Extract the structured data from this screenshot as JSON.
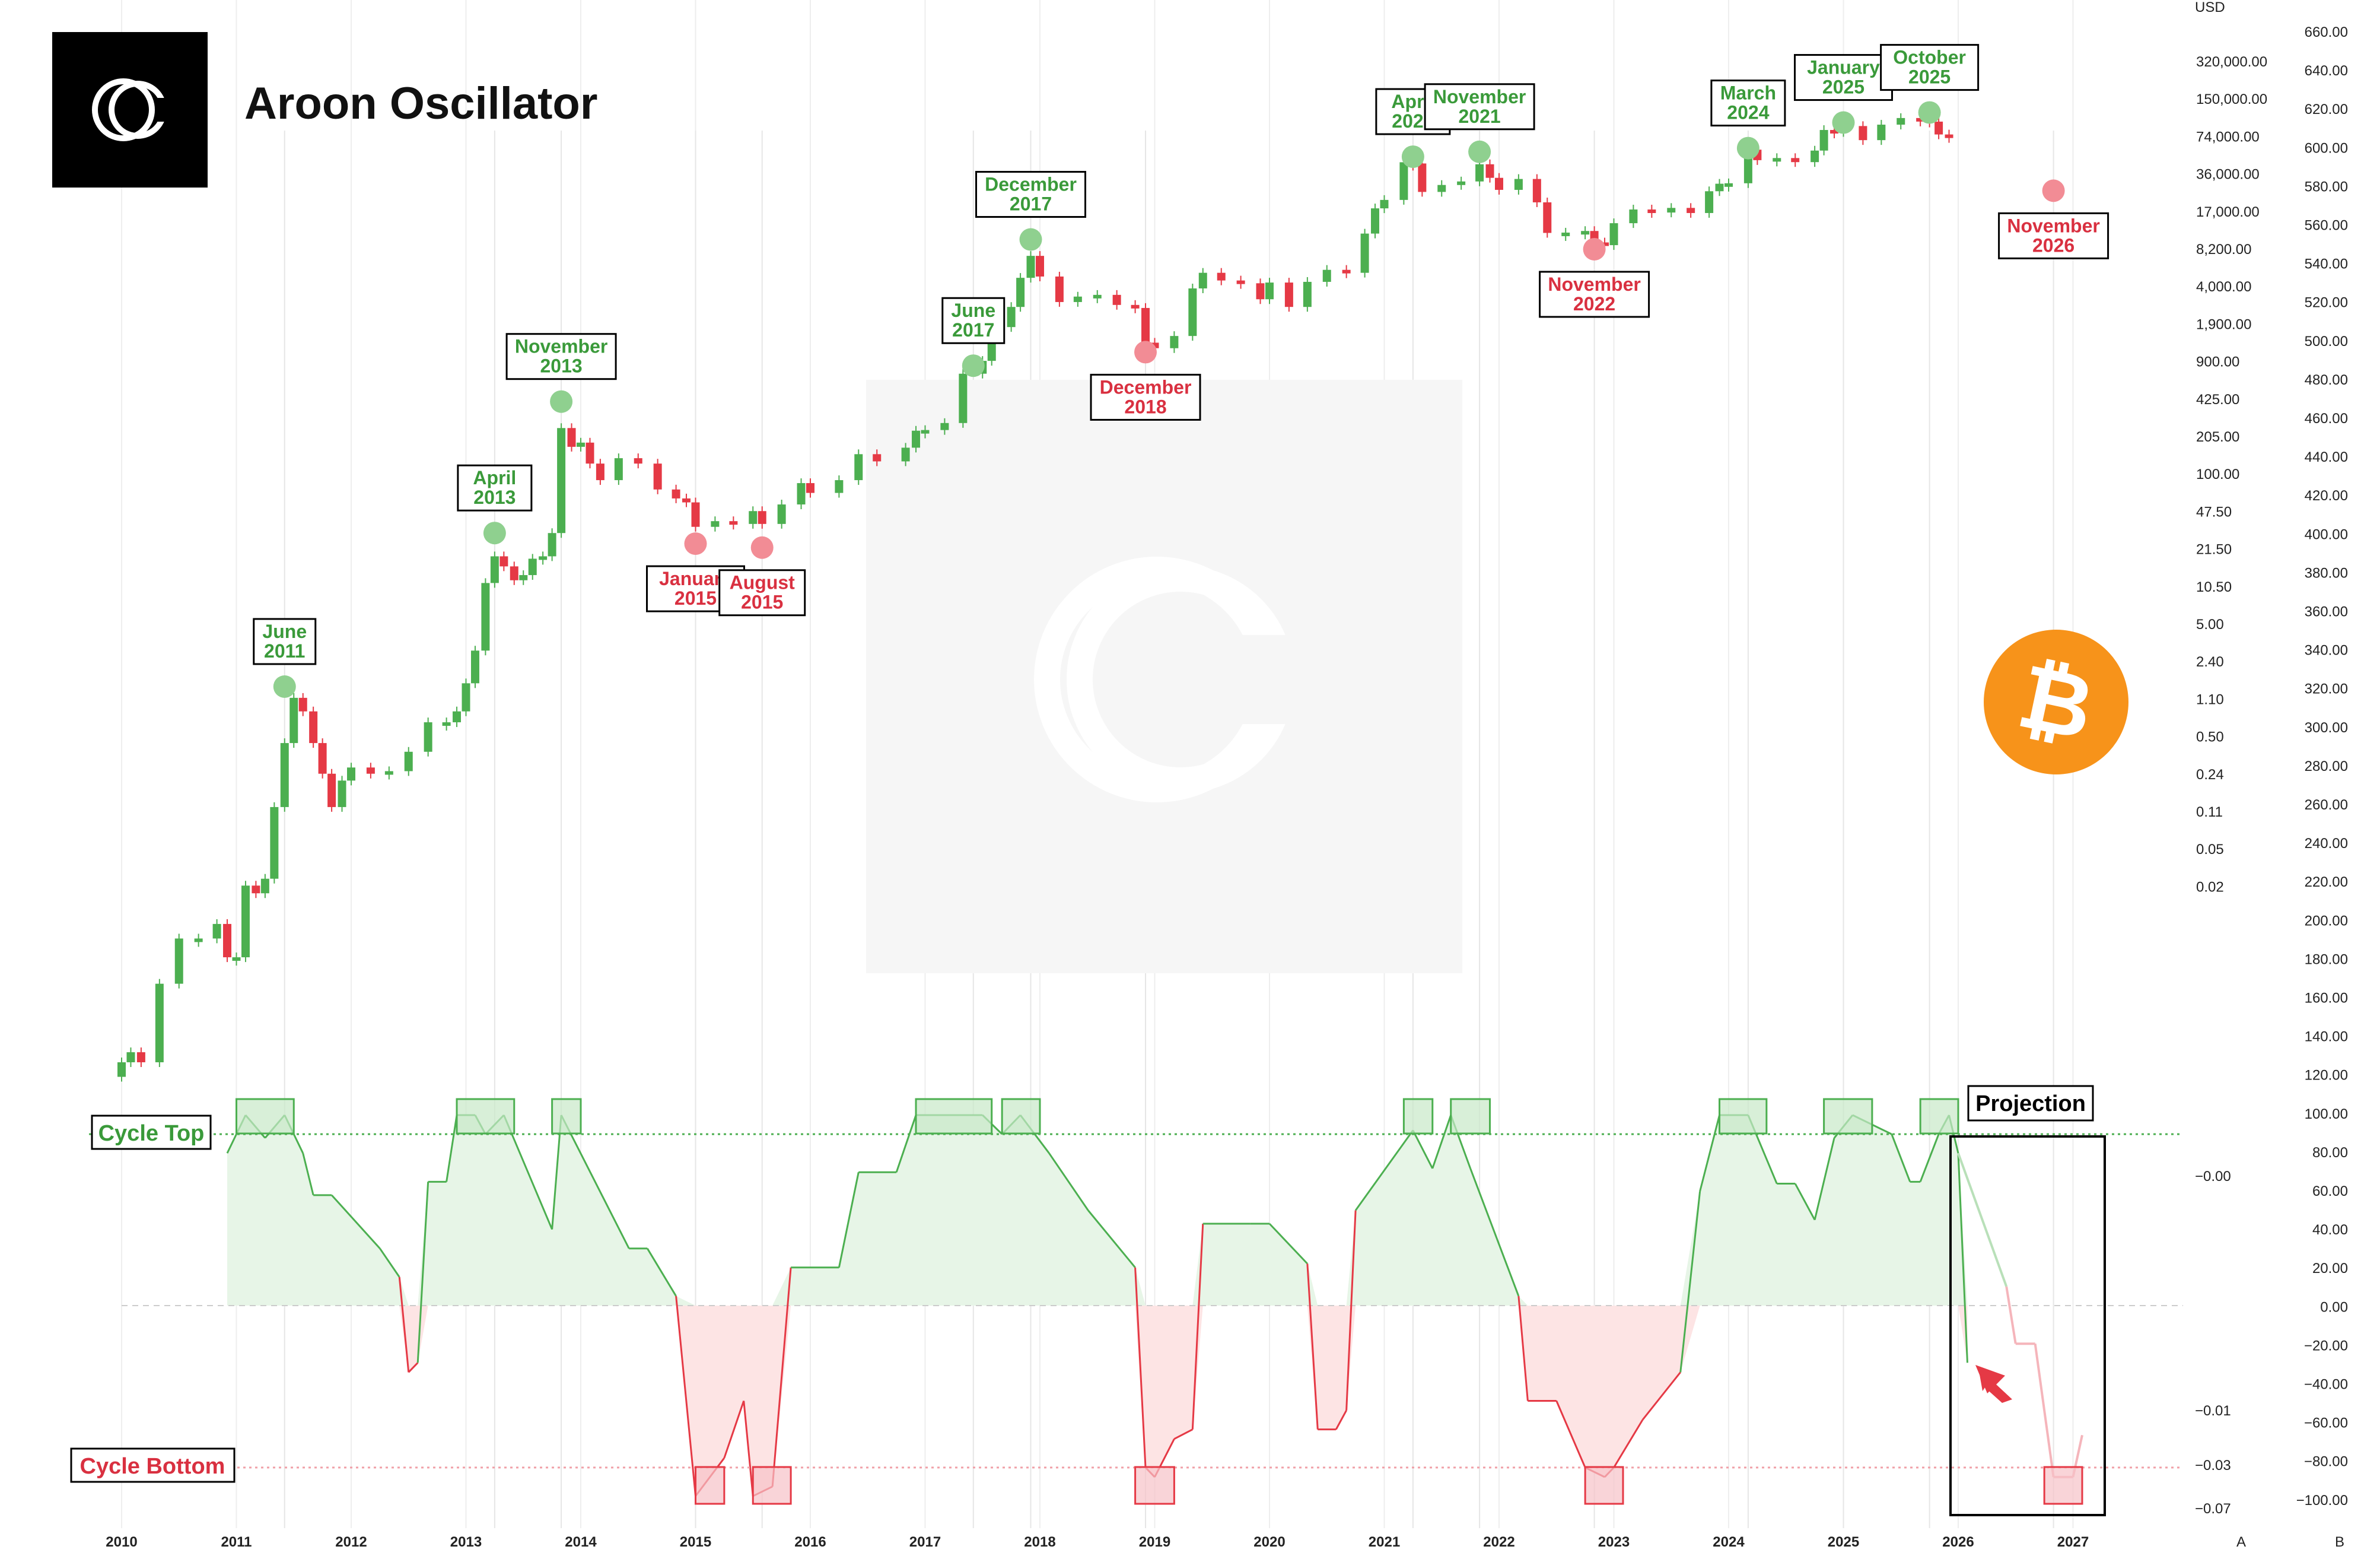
{
  "title": "Aroon Oscillator",
  "colors": {
    "up": "#4caf50",
    "down": "#e53945",
    "top_fill": "#e7f5e7",
    "bottom_fill": "#fde4e4",
    "top_marker": "#8fd08f",
    "bottom_marker": "#f28c95",
    "bitcoin": "#f7931a",
    "logo_bg": "#000000"
  },
  "icons": [
    "cc-logo-icon",
    "bitcoin-icon",
    "watermark-logo-icon",
    "arrow-icon"
  ],
  "price_axis": {
    "unit": "USD",
    "labels": [
      "320,000.00",
      "150,000.00",
      "74,000.00",
      "36,000.00",
      "17,000.00",
      "8,200.00",
      "4,000.00",
      "1,900.00",
      "900.00",
      "425.00",
      "205.00",
      "100.00",
      "47.50",
      "21.50",
      "10.50",
      "5.00",
      "2.40",
      "1.10",
      "0.50",
      "0.24",
      "0.11",
      "0.05",
      "0.02"
    ]
  },
  "right_axis": {
    "labels": [
      "660.00",
      "640.00",
      "620.00",
      "600.00",
      "580.00",
      "560.00",
      "540.00",
      "520.00",
      "500.00",
      "480.00",
      "460.00",
      "440.00",
      "420.00",
      "400.00",
      "380.00",
      "360.00",
      "340.00",
      "320.00",
      "300.00",
      "280.00",
      "260.00",
      "240.00",
      "220.00",
      "200.00",
      "180.00",
      "160.00",
      "140.00",
      "120.00",
      "100.00",
      "80.00",
      "60.00",
      "40.00",
      "20.00",
      "0.00",
      "−20.00",
      "−40.00",
      "−60.00",
      "−80.00",
      "−100.00"
    ],
    "corner_a": "A",
    "corner_b": "B"
  },
  "oscillator_axis": {
    "labels": [
      "−0.00",
      "−0.01",
      "−0.03",
      "−0.07"
    ]
  },
  "x_axis": {
    "years": [
      "2010",
      "2011",
      "2012",
      "2013",
      "2014",
      "2015",
      "2016",
      "2017",
      "2018",
      "2019",
      "2020",
      "2021",
      "2022",
      "2023",
      "2024",
      "2025",
      "2026",
      "2027"
    ]
  },
  "levels": {
    "top_label": "Cycle Top",
    "bottom_label": "Cycle Bottom",
    "projection_label": "Projection"
  },
  "chart_data": {
    "type": "line",
    "title": "Aroon Oscillator",
    "price_series_unit": "USD",
    "price_scale": "log",
    "aroon_range": [
      -100,
      100
    ],
    "cycle_top_level": 90,
    "cycle_bottom_level": -85,
    "price_monthly": [
      {
        "t": 2010.0,
        "v": 0.06
      },
      {
        "t": 2010.08,
        "v": 0.07
      },
      {
        "t": 2010.17,
        "v": 0.06
      },
      {
        "t": 2010.33,
        "v": 0.2
      },
      {
        "t": 2010.5,
        "v": 0.4
      },
      {
        "t": 2010.67,
        "v": 0.4
      },
      {
        "t": 2010.83,
        "v": 0.5
      },
      {
        "t": 2010.92,
        "v": 0.3
      },
      {
        "t": 2011.0,
        "v": 0.3
      },
      {
        "t": 2011.08,
        "v": 0.9
      },
      {
        "t": 2011.17,
        "v": 0.8
      },
      {
        "t": 2011.25,
        "v": 1.0
      },
      {
        "t": 2011.33,
        "v": 3.0
      },
      {
        "t": 2011.42,
        "v": 8.0
      },
      {
        "t": 2011.5,
        "v": 16.0
      },
      {
        "t": 2011.58,
        "v": 13.0
      },
      {
        "t": 2011.67,
        "v": 8.0
      },
      {
        "t": 2011.75,
        "v": 5.0
      },
      {
        "t": 2011.83,
        "v": 3.0
      },
      {
        "t": 2011.92,
        "v": 4.5
      },
      {
        "t": 2012.0,
        "v": 5.5
      },
      {
        "t": 2012.17,
        "v": 5.0
      },
      {
        "t": 2012.33,
        "v": 5.2
      },
      {
        "t": 2012.5,
        "v": 7.0
      },
      {
        "t": 2012.67,
        "v": 11.0
      },
      {
        "t": 2012.83,
        "v": 11.0
      },
      {
        "t": 2012.92,
        "v": 13.0
      },
      {
        "t": 2013.0,
        "v": 20.0
      },
      {
        "t": 2013.08,
        "v": 33.0
      },
      {
        "t": 2013.17,
        "v": 93.0
      },
      {
        "t": 2013.25,
        "v": 140.0
      },
      {
        "t": 2013.33,
        "v": 120.0
      },
      {
        "t": 2013.42,
        "v": 97.0
      },
      {
        "t": 2013.5,
        "v": 105.0
      },
      {
        "t": 2013.58,
        "v": 135.0
      },
      {
        "t": 2013.67,
        "v": 140.0
      },
      {
        "t": 2013.75,
        "v": 200.0
      },
      {
        "t": 2013.83,
        "v": 1000.0
      },
      {
        "t": 2013.92,
        "v": 750.0
      },
      {
        "t": 2014.0,
        "v": 800.0
      },
      {
        "t": 2014.08,
        "v": 580.0
      },
      {
        "t": 2014.17,
        "v": 450.0
      },
      {
        "t": 2014.33,
        "v": 630.0
      },
      {
        "t": 2014.5,
        "v": 580.0
      },
      {
        "t": 2014.67,
        "v": 390.0
      },
      {
        "t": 2014.83,
        "v": 340.0
      },
      {
        "t": 2014.92,
        "v": 320.0
      },
      {
        "t": 2015.0,
        "v": 220.0
      },
      {
        "t": 2015.17,
        "v": 240.0
      },
      {
        "t": 2015.33,
        "v": 230.0
      },
      {
        "t": 2015.5,
        "v": 280.0
      },
      {
        "t": 2015.58,
        "v": 230.0
      },
      {
        "t": 2015.75,
        "v": 310.0
      },
      {
        "t": 2015.92,
        "v": 430.0
      },
      {
        "t": 2016.0,
        "v": 370.0
      },
      {
        "t": 2016.25,
        "v": 450.0
      },
      {
        "t": 2016.42,
        "v": 670.0
      },
      {
        "t": 2016.58,
        "v": 600.0
      },
      {
        "t": 2016.83,
        "v": 740.0
      },
      {
        "t": 2016.92,
        "v": 960.0
      },
      {
        "t": 2017.0,
        "v": 970.0
      },
      {
        "t": 2017.17,
        "v": 1080.0
      },
      {
        "t": 2017.33,
        "v": 2300.0
      },
      {
        "t": 2017.5,
        "v": 2800.0
      },
      {
        "t": 2017.58,
        "v": 4700.0
      },
      {
        "t": 2017.75,
        "v": 6400.0
      },
      {
        "t": 2017.83,
        "v": 10000.0
      },
      {
        "t": 2017.92,
        "v": 14000.0
      },
      {
        "t": 2018.0,
        "v": 10200.0
      },
      {
        "t": 2018.17,
        "v": 6900.0
      },
      {
        "t": 2018.33,
        "v": 7500.0
      },
      {
        "t": 2018.5,
        "v": 7700.0
      },
      {
        "t": 2018.67,
        "v": 6600.0
      },
      {
        "t": 2018.83,
        "v": 6300.0
      },
      {
        "t": 2018.92,
        "v": 3700.0
      },
      {
        "t": 2019.0,
        "v": 3400.0
      },
      {
        "t": 2019.17,
        "v": 4100.0
      },
      {
        "t": 2019.33,
        "v": 8500.0
      },
      {
        "t": 2019.42,
        "v": 10800.0
      },
      {
        "t": 2019.58,
        "v": 9600.0
      },
      {
        "t": 2019.75,
        "v": 9200.0
      },
      {
        "t": 2019.92,
        "v": 7200.0
      },
      {
        "t": 2020.0,
        "v": 9300.0
      },
      {
        "t": 2020.17,
        "v": 6400.0
      },
      {
        "t": 2020.33,
        "v": 9400.0
      },
      {
        "t": 2020.5,
        "v": 11300.0
      },
      {
        "t": 2020.67,
        "v": 10800.0
      },
      {
        "t": 2020.83,
        "v": 19700.0
      },
      {
        "t": 2020.92,
        "v": 29000.0
      },
      {
        "t": 2021.0,
        "v": 33000.0
      },
      {
        "t": 2021.17,
        "v": 58800.0
      },
      {
        "t": 2021.25,
        "v": 57700.0
      },
      {
        "t": 2021.33,
        "v": 37300.0
      },
      {
        "t": 2021.5,
        "v": 41500.0
      },
      {
        "t": 2021.67,
        "v": 43800.0
      },
      {
        "t": 2021.83,
        "v": 57000.0
      },
      {
        "t": 2021.92,
        "v": 46300.0
      },
      {
        "t": 2022.0,
        "v": 38500.0
      },
      {
        "t": 2022.17,
        "v": 45500.0
      },
      {
        "t": 2022.33,
        "v": 31800.0
      },
      {
        "t": 2022.42,
        "v": 19900.0
      },
      {
        "t": 2022.58,
        "v": 20000.0
      },
      {
        "t": 2022.75,
        "v": 20500.0
      },
      {
        "t": 2022.83,
        "v": 17200.0
      },
      {
        "t": 2022.92,
        "v": 16500.0
      },
      {
        "t": 2023.0,
        "v": 23100.0
      },
      {
        "t": 2023.17,
        "v": 28500.0
      },
      {
        "t": 2023.33,
        "v": 27200.0
      },
      {
        "t": 2023.5,
        "v": 29200.0
      },
      {
        "t": 2023.67,
        "v": 27000.0
      },
      {
        "t": 2023.83,
        "v": 37700.0
      },
      {
        "t": 2023.92,
        "v": 42300.0
      },
      {
        "t": 2024.0,
        "v": 42600.0
      },
      {
        "t": 2024.17,
        "v": 71300.0
      },
      {
        "t": 2024.25,
        "v": 60700.0
      },
      {
        "t": 2024.42,
        "v": 62700.0
      },
      {
        "t": 2024.58,
        "v": 58900.0
      },
      {
        "t": 2024.75,
        "v": 70300.0
      },
      {
        "t": 2024.83,
        "v": 96400.0
      },
      {
        "t": 2024.92,
        "v": 93400.0
      },
      {
        "t": 2025.0,
        "v": 102400.0
      },
      {
        "t": 2025.17,
        "v": 82500.0
      },
      {
        "t": 2025.33,
        "v": 104600.0
      },
      {
        "t": 2025.5,
        "v": 115800.0
      },
      {
        "t": 2025.67,
        "v": 114000.0
      },
      {
        "t": 2025.75,
        "v": 109600.0
      },
      {
        "t": 2025.83,
        "v": 90000.0
      },
      {
        "t": 2025.92,
        "v": 87000.0
      }
    ],
    "aroon": [
      {
        "t": 2010.92,
        "v": 80
      },
      {
        "t": 2011.0,
        "v": 90
      },
      {
        "t": 2011.08,
        "v": 100
      },
      {
        "t": 2011.25,
        "v": 88
      },
      {
        "t": 2011.42,
        "v": 100
      },
      {
        "t": 2011.58,
        "v": 80
      },
      {
        "t": 2011.67,
        "v": 58
      },
      {
        "t": 2011.83,
        "v": 58
      },
      {
        "t": 2012.25,
        "v": 30
      },
      {
        "t": 2012.42,
        "v": 15
      },
      {
        "t": 2012.5,
        "v": -35
      },
      {
        "t": 2012.58,
        "v": -30
      },
      {
        "t": 2012.67,
        "v": 65
      },
      {
        "t": 2012.83,
        "v": 65
      },
      {
        "t": 2012.92,
        "v": 100
      },
      {
        "t": 2013.08,
        "v": 100
      },
      {
        "t": 2013.17,
        "v": 90
      },
      {
        "t": 2013.33,
        "v": 100
      },
      {
        "t": 2013.75,
        "v": 40
      },
      {
        "t": 2013.83,
        "v": 100
      },
      {
        "t": 2014.42,
        "v": 30
      },
      {
        "t": 2014.58,
        "v": 30
      },
      {
        "t": 2014.83,
        "v": 5
      },
      {
        "t": 2015.0,
        "v": -100
      },
      {
        "t": 2015.25,
        "v": -80
      },
      {
        "t": 2015.42,
        "v": -50
      },
      {
        "t": 2015.5,
        "v": -100
      },
      {
        "t": 2015.67,
        "v": -95
      },
      {
        "t": 2015.83,
        "v": 20
      },
      {
        "t": 2016.25,
        "v": 20
      },
      {
        "t": 2016.42,
        "v": 70
      },
      {
        "t": 2016.75,
        "v": 70
      },
      {
        "t": 2016.92,
        "v": 100
      },
      {
        "t": 2017.5,
        "v": 100
      },
      {
        "t": 2017.67,
        "v": 90
      },
      {
        "t": 2017.83,
        "v": 100
      },
      {
        "t": 2018.08,
        "v": 80
      },
      {
        "t": 2018.42,
        "v": 50
      },
      {
        "t": 2018.83,
        "v": 20
      },
      {
        "t": 2018.92,
        "v": -85
      },
      {
        "t": 2019.0,
        "v": -90
      },
      {
        "t": 2019.17,
        "v": -70
      },
      {
        "t": 2019.33,
        "v": -65
      },
      {
        "t": 2019.42,
        "v": 43
      },
      {
        "t": 2019.83,
        "v": 43
      },
      {
        "t": 2020.0,
        "v": 43
      },
      {
        "t": 2020.33,
        "v": 22
      },
      {
        "t": 2020.42,
        "v": -65
      },
      {
        "t": 2020.58,
        "v": -65
      },
      {
        "t": 2020.67,
        "v": -55
      },
      {
        "t": 2020.75,
        "v": 50
      },
      {
        "t": 2021.25,
        "v": 92
      },
      {
        "t": 2021.42,
        "v": 72
      },
      {
        "t": 2021.58,
        "v": 100
      },
      {
        "t": 2021.75,
        "v": 72
      },
      {
        "t": 2022.17,
        "v": 5
      },
      {
        "t": 2022.25,
        "v": -50
      },
      {
        "t": 2022.5,
        "v": -50
      },
      {
        "t": 2022.75,
        "v": -85
      },
      {
        "t": 2022.92,
        "v": -90
      },
      {
        "t": 2023.0,
        "v": -85
      },
      {
        "t": 2023.25,
        "v": -60
      },
      {
        "t": 2023.58,
        "v": -35
      },
      {
        "t": 2023.75,
        "v": 60
      },
      {
        "t": 2023.92,
        "v": 100
      },
      {
        "t": 2024.17,
        "v": 100
      },
      {
        "t": 2024.42,
        "v": 64
      },
      {
        "t": 2024.58,
        "v": 64
      },
      {
        "t": 2024.75,
        "v": 45
      },
      {
        "t": 2024.92,
        "v": 88
      },
      {
        "t": 2025.08,
        "v": 100
      },
      {
        "t": 2025.42,
        "v": 90
      },
      {
        "t": 2025.58,
        "v": 65
      },
      {
        "t": 2025.67,
        "v": 65
      },
      {
        "t": 2025.83,
        "v": 90
      },
      {
        "t": 2025.92,
        "v": 100
      },
      {
        "t": 2026.0,
        "v": 80
      },
      {
        "t": 2026.08,
        "v": -30
      }
    ],
    "aroon_projection": [
      {
        "t": 2026.0,
        "v": 80
      },
      {
        "t": 2026.42,
        "v": 10
      },
      {
        "t": 2026.5,
        "v": -20
      },
      {
        "t": 2026.67,
        "v": -20
      },
      {
        "t": 2026.83,
        "v": -90
      },
      {
        "t": 2027.0,
        "v": -90
      },
      {
        "t": 2027.08,
        "v": -68
      }
    ],
    "annotations": {
      "tops": [
        {
          "text": "June 2011",
          "t": 2011.42,
          "v": 19.0
        },
        {
          "text": "April 2013",
          "t": 2013.25,
          "v": 200.0
        },
        {
          "text": "November 2013",
          "t": 2013.83,
          "v": 1500.0
        },
        {
          "text": "June 2017",
          "t": 2017.42,
          "v": 2600.0
        },
        {
          "text": "December 2017",
          "t": 2017.92,
          "v": 18000.0
        },
        {
          "text": "April 2021",
          "t": 2021.25,
          "v": 64000.0
        },
        {
          "text": "November 2021",
          "t": 2021.83,
          "v": 69000.0
        },
        {
          "text": "March 2024",
          "t": 2024.17,
          "v": 73000.0
        },
        {
          "text": "January 2025",
          "t": 2025.0,
          "v": 108000.0
        },
        {
          "text": "October 2025",
          "t": 2025.75,
          "v": 126000.0
        }
      ],
      "bottoms": [
        {
          "text": "January 2015",
          "t": 2015.0,
          "v": 170.0
        },
        {
          "text": "August 2015",
          "t": 2015.58,
          "v": 160.0
        },
        {
          "text": "December 2018",
          "t": 2018.92,
          "v": 3200.0
        },
        {
          "text": "November 2022",
          "t": 2022.83,
          "v": 15500.0
        },
        {
          "text": "November 2026",
          "t": 2026.83,
          "v": 38000.0
        }
      ]
    },
    "top_zones": [
      [
        2011.0,
        2011.5
      ],
      [
        2012.92,
        2013.42
      ],
      [
        2013.75,
        2014.0
      ],
      [
        2016.92,
        2017.58
      ],
      [
        2017.67,
        2018.0
      ],
      [
        2021.17,
        2021.42
      ],
      [
        2021.58,
        2021.92
      ],
      [
        2023.92,
        2024.33
      ],
      [
        2024.83,
        2025.25
      ],
      [
        2025.67,
        2026.0
      ]
    ],
    "bottom_zones": [
      [
        2015.0,
        2015.25
      ],
      [
        2015.5,
        2015.83
      ],
      [
        2018.83,
        2019.17
      ],
      [
        2022.75,
        2023.08
      ],
      [
        2026.75,
        2027.08
      ]
    ],
    "projection_range": [
      2026.0,
      2027.25
    ],
    "grid": "vertical year lines"
  }
}
